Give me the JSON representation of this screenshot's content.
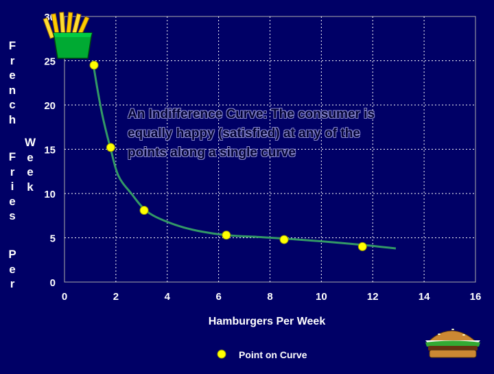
{
  "chart_data": {
    "type": "scatter",
    "title": "",
    "annotation": " An Indifference Curve:  The consumer is\nequally happy (satisfied) at any of the\npoints along a single curve",
    "xlabel": "Hamburgers Per Week",
    "ylabel_left": "French",
    "ylabel_left2": "Fries",
    "ylabel_left3": "Per",
    "ylabel_right": "Week",
    "xlim": [
      0,
      16
    ],
    "ylim": [
      0,
      30
    ],
    "xticks": [
      "0",
      "2",
      "4",
      "6",
      "8",
      "10",
      "12",
      "14",
      "16"
    ],
    "yticks": [
      "0",
      "5",
      "10",
      "15",
      "20",
      "25",
      "30"
    ],
    "grid": true,
    "curve": {
      "x": [
        1.1,
        1.3,
        1.5,
        1.8,
        2.1,
        2.6,
        3.2,
        4.0,
        5.0,
        6.3,
        7.5,
        8.6,
        10.0,
        11.6,
        12.9
      ],
      "y": [
        25.0,
        21.5,
        18.5,
        15.0,
        12.0,
        10.0,
        8.0,
        6.8,
        5.9,
        5.3,
        5.1,
        4.9,
        4.6,
        4.2,
        3.8
      ]
    },
    "series": [
      {
        "name": "Point on Curve",
        "color": "#ffff00",
        "points": [
          {
            "x": 1.15,
            "y": 24.5
          },
          {
            "x": 1.8,
            "y": 15.2
          },
          {
            "x": 3.1,
            "y": 8.1
          },
          {
            "x": 6.3,
            "y": 5.3
          },
          {
            "x": 8.55,
            "y": 4.8
          },
          {
            "x": 11.6,
            "y": 4.0
          }
        ]
      }
    ],
    "curve_color": "#339966",
    "legend": {
      "label": "Point on Curve",
      "placement": "bottom"
    },
    "icons": [
      "french-fries-icon",
      "hamburger-icon"
    ]
  }
}
